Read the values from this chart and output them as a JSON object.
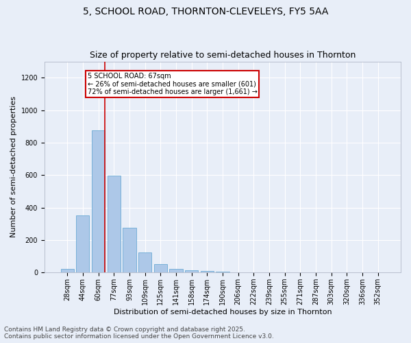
{
  "title_line1": "5, SCHOOL ROAD, THORNTON-CLEVELEYS, FY5 5AA",
  "title_line2": "Size of property relative to semi-detached houses in Thornton",
  "xlabel": "Distribution of semi-detached houses by size in Thornton",
  "ylabel": "Number of semi-detached properties",
  "categories": [
    "28sqm",
    "44sqm",
    "60sqm",
    "77sqm",
    "93sqm",
    "109sqm",
    "125sqm",
    "141sqm",
    "158sqm",
    "174sqm",
    "190sqm",
    "206sqm",
    "222sqm",
    "239sqm",
    "255sqm",
    "271sqm",
    "287sqm",
    "303sqm",
    "320sqm",
    "336sqm",
    "352sqm"
  ],
  "values": [
    22,
    350,
    875,
    598,
    275,
    125,
    50,
    22,
    15,
    10,
    5,
    0,
    0,
    0,
    0,
    0,
    0,
    0,
    0,
    0,
    0
  ],
  "bar_color": "#adc8e8",
  "bar_edge_color": "#6aaad4",
  "annotation_title": "5 SCHOOL ROAD: 67sqm",
  "annotation_line2": "← 26% of semi-detached houses are smaller (601)",
  "annotation_line3": "72% of semi-detached houses are larger (1,661) →",
  "annotation_box_color": "#cc0000",
  "ylim": [
    0,
    1300
  ],
  "yticks": [
    0,
    200,
    400,
    600,
    800,
    1000,
    1200
  ],
  "background_color": "#e8eef8",
  "grid_color": "#ffffff",
  "footer_line1": "Contains HM Land Registry data © Crown copyright and database right 2025.",
  "footer_line2": "Contains public sector information licensed under the Open Government Licence v3.0.",
  "title_fontsize": 10,
  "subtitle_fontsize": 9,
  "label_fontsize": 8,
  "tick_fontsize": 7,
  "footer_fontsize": 6.5
}
